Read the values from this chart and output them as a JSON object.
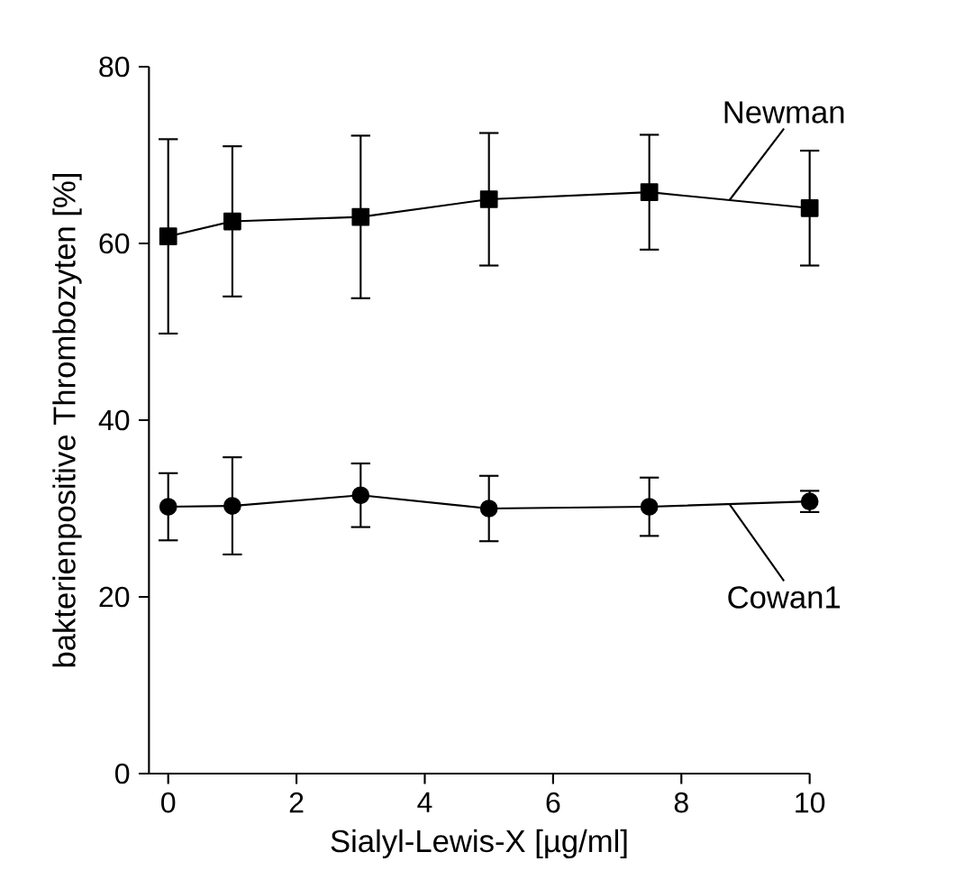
{
  "chart_data": {
    "type": "line",
    "xlabel": "Sialyl-Lewis-X [µg/ml]",
    "ylabel": "bakterienpositive Thrombozyten [%]",
    "x": [
      0,
      1,
      3,
      5,
      7.5,
      10
    ],
    "xlim": [
      -0.3,
      10
    ],
    "xticks": [
      0,
      2,
      4,
      6,
      8,
      10
    ],
    "ylim": [
      0,
      80
    ],
    "yticks": [
      0,
      20,
      40,
      60,
      80
    ],
    "grid": false,
    "legend": false,
    "line_style": "solid",
    "series": [
      {
        "name": "Newman",
        "color": "#000000",
        "marker": "square",
        "values": [
          60.8,
          62.5,
          63,
          65,
          65.8,
          64
        ],
        "errors": [
          11,
          8.5,
          9.2,
          7.5,
          6.5,
          6.5
        ]
      },
      {
        "name": "Cowan1",
        "color": "#000000",
        "marker": "circle",
        "values": [
          30.2,
          30.3,
          31.5,
          30,
          30.2,
          30.8
        ],
        "errors": [
          3.8,
          5.5,
          3.6,
          3.7,
          3.3,
          1.2
        ]
      }
    ]
  }
}
